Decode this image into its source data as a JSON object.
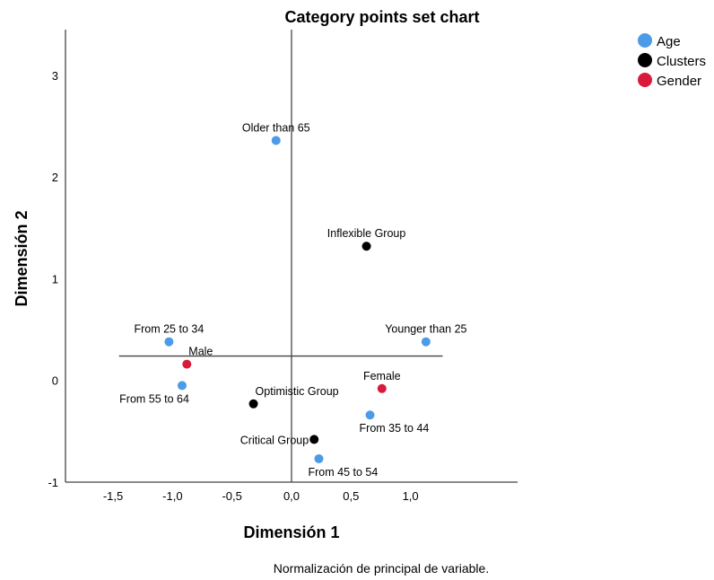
{
  "chart_data": {
    "type": "scatter",
    "title": "Category points set chart",
    "xlabel": "Dimensión 1",
    "ylabel": "Dimensión 2",
    "footnote": "Normalización de principal de variable.",
    "xlim": [
      -1.9,
      1.9
    ],
    "ylim": [
      -1,
      3.45
    ],
    "x_ticks": [
      {
        "value": -1.5,
        "label": "-1,5"
      },
      {
        "value": -1.0,
        "label": "-1,0"
      },
      {
        "value": -0.5,
        "label": "-0,5"
      },
      {
        "value": 0.0,
        "label": "0,0"
      },
      {
        "value": 0.5,
        "label": "0,5"
      },
      {
        "value": 1.0,
        "label": "1,0"
      }
    ],
    "y_ticks": [
      {
        "value": -1,
        "label": "-1"
      },
      {
        "value": 0,
        "label": "0"
      },
      {
        "value": 1,
        "label": "1"
      },
      {
        "value": 2,
        "label": "2"
      },
      {
        "value": 3,
        "label": "3"
      }
    ],
    "legend_position": "top-right",
    "series": [
      {
        "name": "Age",
        "color": "#4C9BE8",
        "points": [
          {
            "label": "Older than 65",
            "x": -0.13,
            "y": 2.36,
            "label_pos": "above"
          },
          {
            "label": "From 25 to 34",
            "x": -1.03,
            "y": 0.38,
            "label_pos": "above"
          },
          {
            "label": "Younger than 25",
            "x": 1.13,
            "y": 0.38,
            "label_pos": "above"
          },
          {
            "label": "From 55 to 64",
            "x": -0.92,
            "y": -0.05,
            "label_pos": "below-left"
          },
          {
            "label": "From 35 to 44",
            "x": 0.66,
            "y": -0.34,
            "label_pos": "below-right"
          },
          {
            "label": "From 45 to 54",
            "x": 0.23,
            "y": -0.77,
            "label_pos": "below-right"
          }
        ]
      },
      {
        "name": "Clusters",
        "color": "#000000",
        "points": [
          {
            "label": "Inflexible Group",
            "x": 0.63,
            "y": 1.32,
            "label_pos": "above"
          },
          {
            "label": "Optimistic Group",
            "x": -0.32,
            "y": -0.23,
            "label_pos": "above-right"
          },
          {
            "label": "Critical Group",
            "x": 0.19,
            "y": -0.58,
            "label_pos": "left"
          }
        ]
      },
      {
        "name": "Gender",
        "color": "#D91A3A",
        "points": [
          {
            "label": "Male",
            "x": -0.88,
            "y": 0.16,
            "label_pos": "above-right"
          },
          {
            "label": "Female",
            "x": 0.76,
            "y": -0.08,
            "label_pos": "above"
          }
        ]
      }
    ],
    "reference_lines": {
      "vertical_x": 0.0,
      "horizontal_y": 0.24
    },
    "grid": false
  }
}
